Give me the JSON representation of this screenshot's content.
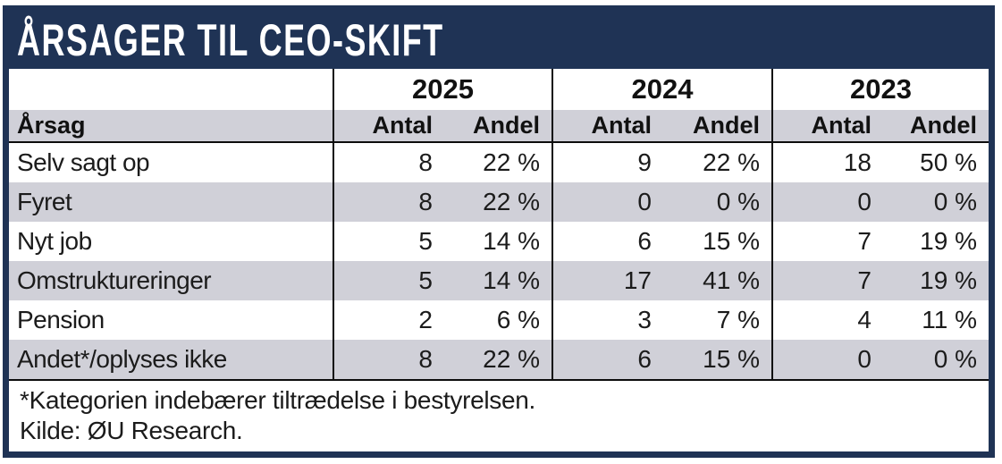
{
  "title": "ÅRSAGER TIL CEO-SKIFT",
  "colors": {
    "navy": "#1f3355",
    "stripe_gray": "#d0d0d8",
    "line_black": "#0d0d0d",
    "text": "#1b1b1b",
    "title_text": "#ffffff"
  },
  "chart_data": {
    "type": "table",
    "title": "ÅRSAGER TIL CEO-SKIFT",
    "row_header": "Årsag",
    "years": [
      "2025",
      "2024",
      "2023"
    ],
    "measure_labels": [
      "Antal",
      "Andel"
    ],
    "rows": [
      {
        "label": "Selv sagt op",
        "cells": [
          "8",
          "22 %",
          "9",
          "22 %",
          "18",
          "50 %"
        ]
      },
      {
        "label": "Fyret",
        "cells": [
          "8",
          "22 %",
          "0",
          "0 %",
          "0",
          "0 %"
        ]
      },
      {
        "label": "Nyt job",
        "cells": [
          "5",
          "14 %",
          "6",
          "15 %",
          "7",
          "19 %"
        ]
      },
      {
        "label": "Omstruktureringer",
        "cells": [
          "5",
          "14 %",
          "17",
          "41 %",
          "7",
          "19 %"
        ]
      },
      {
        "label": "Pension",
        "cells": [
          "2",
          "6 %",
          "3",
          "7 %",
          "4",
          "11 %"
        ]
      },
      {
        "label": "Andet*/oplyses ikke",
        "cells": [
          "8",
          "22 %",
          "6",
          "15 %",
          "0",
          "0 %"
        ]
      }
    ],
    "notes": [
      "*Kategorien indebærer tiltrædelse i bestyrelsen.",
      "Kilde: ØU Research."
    ]
  }
}
